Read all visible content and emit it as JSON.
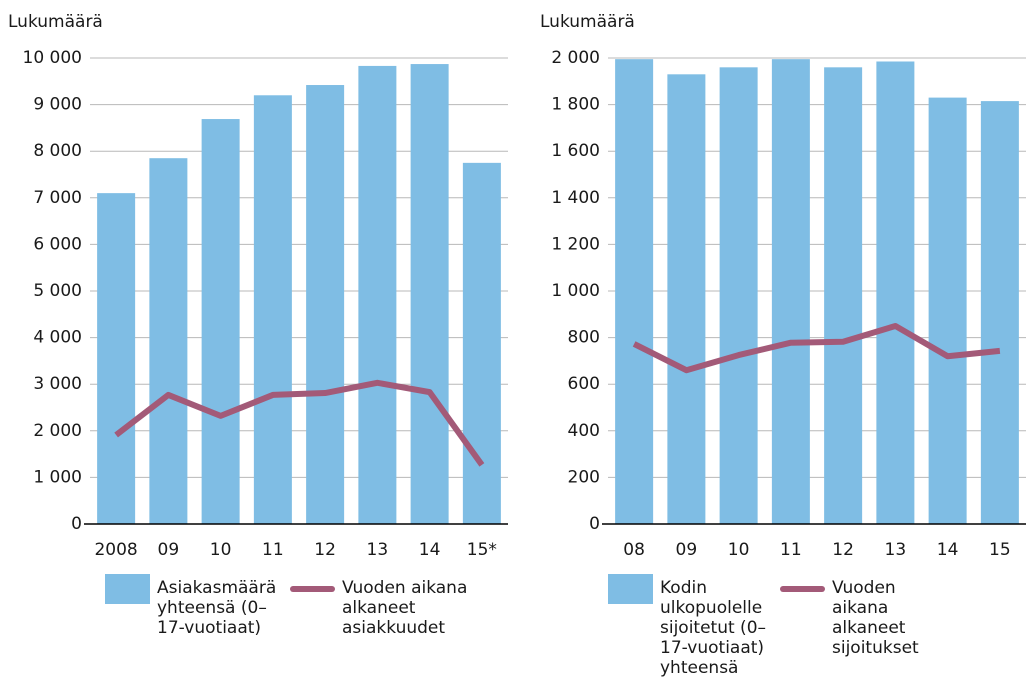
{
  "chart_data": [
    {
      "type": "bar",
      "ylabel": "Lukumäärä",
      "categories": [
        "2008",
        "09",
        "10",
        "11",
        "12",
        "13",
        "14",
        "15*"
      ],
      "series": [
        {
          "name": "Asiakasmäärä yhteensä (0–17-vuotiaat)",
          "type": "bar",
          "color": "#7fbde4",
          "values": [
            7100,
            7850,
            8690,
            9200,
            9420,
            9830,
            9870,
            7750
          ]
        },
        {
          "name": "Vuoden aikana alkaneet asiakkuudet",
          "type": "line",
          "color": "#a35a78",
          "values": [
            1910,
            2770,
            2320,
            2770,
            2810,
            3030,
            2830,
            1270
          ]
        }
      ],
      "ylim": [
        0,
        10000
      ],
      "yticks": [
        0,
        {
          "value": 1000,
          "label": "1 000"
        },
        {
          "value": 2000,
          "label": "2 000"
        },
        {
          "value": 3000,
          "label": "3 000"
        },
        {
          "value": 4000,
          "label": "4 000"
        },
        {
          "value": 5000,
          "label": "5 000"
        },
        {
          "value": 6000,
          "label": "6 000"
        },
        {
          "value": 7000,
          "label": "7 000"
        },
        {
          "value": 8000,
          "label": "8 000"
        },
        {
          "value": 9000,
          "label": "9 000"
        },
        {
          "value": 10000,
          "label": "10 000"
        }
      ],
      "grid": true
    },
    {
      "type": "bar",
      "ylabel": "Lukumäärä",
      "categories": [
        "08",
        "09",
        "10",
        "11",
        "12",
        "13",
        "14",
        "15"
      ],
      "series": [
        {
          "name": "Kodin ulkopuolelle sijoitetut (0–17-vuotiaat) yhteensä",
          "type": "bar",
          "color": "#7fbde4",
          "values": [
            1995,
            1930,
            1960,
            1995,
            1960,
            1985,
            1830,
            1815
          ]
        },
        {
          "name": "Vuoden aikana alkaneet sijoitukset",
          "type": "line",
          "color": "#a35a78",
          "values": [
            773,
            660,
            725,
            778,
            782,
            850,
            720,
            743
          ]
        }
      ],
      "ylim": [
        0,
        2000
      ],
      "yticks": [
        0,
        200,
        400,
        600,
        800,
        {
          "value": 1000,
          "label": "1 000"
        },
        {
          "value": 1200,
          "label": "1 200"
        },
        {
          "value": 1400,
          "label": "1 400"
        },
        {
          "value": 1600,
          "label": "1 600"
        },
        {
          "value": 1800,
          "label": "1 800"
        },
        {
          "value": 2000,
          "label": "2 000"
        }
      ],
      "grid": true
    }
  ]
}
